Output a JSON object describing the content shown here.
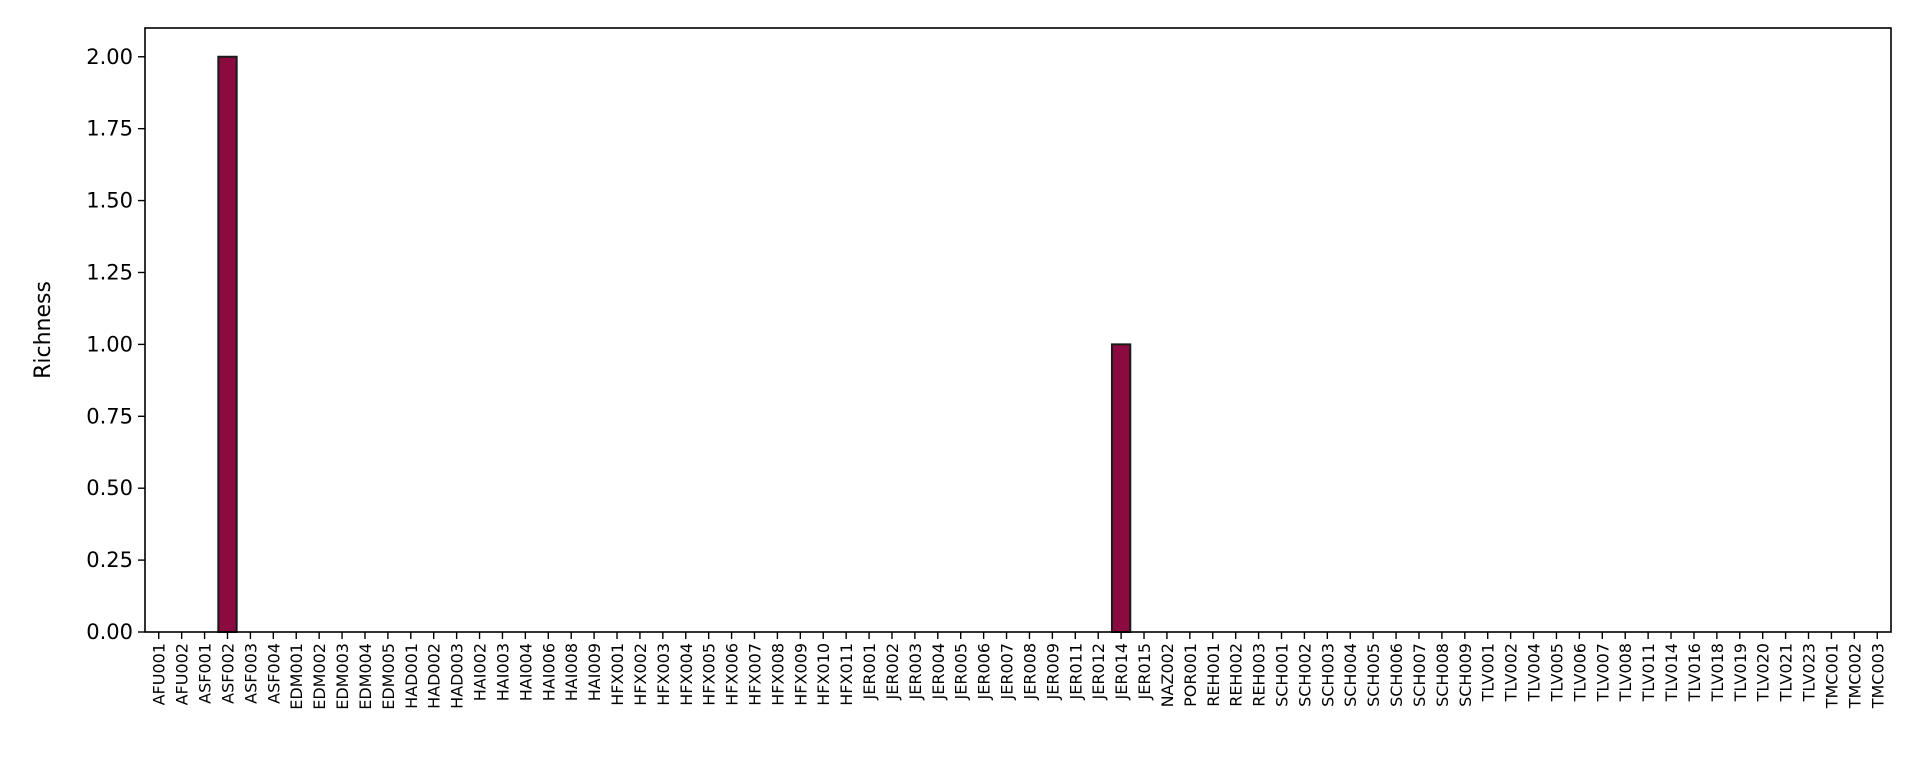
{
  "chart_data": {
    "type": "bar",
    "title": "",
    "xlabel": "",
    "ylabel": "Richness",
    "ylim": [
      0,
      2.1
    ],
    "yticks": [
      "0.00",
      "0.25",
      "0.50",
      "0.75",
      "1.00",
      "1.25",
      "1.50",
      "1.75",
      "2.00"
    ],
    "grid": false,
    "bar_color": "#8b0a3f",
    "bar_edge_color": "#1a1a1a",
    "categories": [
      "AFU001",
      "AFU002",
      "ASF001",
      "ASF002",
      "ASF003",
      "ASF004",
      "EDM001",
      "EDM002",
      "EDM003",
      "EDM004",
      "EDM005",
      "HAD001",
      "HAD002",
      "HAD003",
      "HAI002",
      "HAI003",
      "HAI004",
      "HAI006",
      "HAI008",
      "HAI009",
      "HFX001",
      "HFX002",
      "HFX003",
      "HFX004",
      "HFX005",
      "HFX006",
      "HFX007",
      "HFX008",
      "HFX009",
      "HFX010",
      "HFX011",
      "JER001",
      "JER002",
      "JER003",
      "JER004",
      "JER005",
      "JER006",
      "JER007",
      "JER008",
      "JER009",
      "JER011",
      "JER012",
      "JER014",
      "JER015",
      "NAZ002",
      "POR001",
      "REH001",
      "REH002",
      "REH003",
      "SCH001",
      "SCH002",
      "SCH003",
      "SCH004",
      "SCH005",
      "SCH006",
      "SCH007",
      "SCH008",
      "SCH009",
      "TLV001",
      "TLV002",
      "TLV004",
      "TLV005",
      "TLV006",
      "TLV007",
      "TLV008",
      "TLV011",
      "TLV014",
      "TLV016",
      "TLV018",
      "TLV019",
      "TLV020",
      "TLV021",
      "TLV023",
      "TMC001",
      "TMC002",
      "TMC003"
    ],
    "values": [
      0,
      0,
      0,
      2,
      0,
      0,
      0,
      0,
      0,
      0,
      0,
      0,
      0,
      0,
      0,
      0,
      0,
      0,
      0,
      0,
      0,
      0,
      0,
      0,
      0,
      0,
      0,
      0,
      0,
      0,
      0,
      0,
      0,
      0,
      0,
      0,
      0,
      0,
      0,
      0,
      0,
      0,
      1,
      0,
      0,
      0,
      0,
      0,
      0,
      0,
      0,
      0,
      0,
      0,
      0,
      0,
      0,
      0,
      0,
      0,
      0,
      0,
      0,
      0,
      0,
      0,
      0,
      0,
      0,
      0,
      0,
      0,
      0,
      0,
      0,
      0
    ]
  }
}
